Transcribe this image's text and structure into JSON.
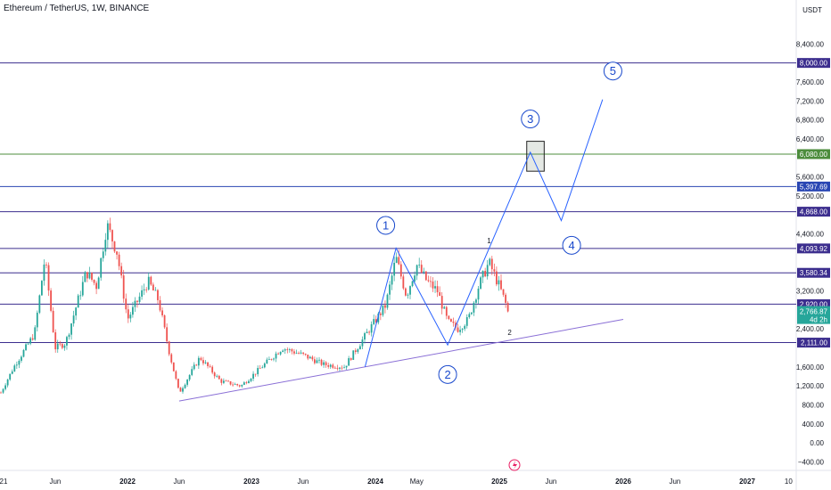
{
  "header": {
    "title": "Ethereum / TetherUS, 1W, BINANCE"
  },
  "chart_data": {
    "type": "candlestick",
    "title": "Ethereum / TetherUS, 1W, BINANCE",
    "y_unit": "USDT",
    "ylim": [
      -580,
      8950
    ],
    "y_ticks": [
      8400,
      7600,
      7200,
      6800,
      6400,
      5600,
      5200,
      4400,
      3200,
      2400,
      1600,
      1200,
      800,
      400,
      0,
      -400
    ],
    "x_ticks": [
      {
        "label": "21",
        "date": "2021-01"
      },
      {
        "label": "Jun",
        "date": "2021-06"
      },
      {
        "label": "2022",
        "date": "2022-01"
      },
      {
        "label": "Jun",
        "date": "2022-06"
      },
      {
        "label": "2023",
        "date": "2023-01"
      },
      {
        "label": "Jun",
        "date": "2023-06"
      },
      {
        "label": "2024",
        "date": "2024-01"
      },
      {
        "label": "May",
        "date": "2024-05"
      },
      {
        "label": "2025",
        "date": "2025-01"
      },
      {
        "label": "Jun",
        "date": "2025-06"
      },
      {
        "label": "2026",
        "date": "2026-01"
      },
      {
        "label": "Jun",
        "date": "2026-06"
      },
      {
        "label": "2027",
        "date": "2027-01"
      },
      {
        "label": "10",
        "date": "2027-05"
      }
    ],
    "price_path": [
      {
        "date": "2020-12",
        "price": 740
      },
      {
        "date": "2021-02",
        "price": 1600
      },
      {
        "date": "2021-04",
        "price": 2300
      },
      {
        "date": "2021-05",
        "price": 3900
      },
      {
        "date": "2021-06",
        "price": 2000
      },
      {
        "date": "2021-07",
        "price": 2100
      },
      {
        "date": "2021-09",
        "price": 3600
      },
      {
        "date": "2021-10",
        "price": 3300
      },
      {
        "date": "2021-11",
        "price": 4600
      },
      {
        "date": "2021-12",
        "price": 4000
      },
      {
        "date": "2022-01",
        "price": 2600
      },
      {
        "date": "2022-03",
        "price": 3400
      },
      {
        "date": "2022-04",
        "price": 3000
      },
      {
        "date": "2022-05",
        "price": 1950
      },
      {
        "date": "2022-06",
        "price": 1050
      },
      {
        "date": "2022-08",
        "price": 1800
      },
      {
        "date": "2022-10",
        "price": 1300
      },
      {
        "date": "2022-12",
        "price": 1200
      },
      {
        "date": "2023-02",
        "price": 1600
      },
      {
        "date": "2023-04",
        "price": 2000
      },
      {
        "date": "2023-06",
        "price": 1850
      },
      {
        "date": "2023-08",
        "price": 1650
      },
      {
        "date": "2023-10",
        "price": 1600
      },
      {
        "date": "2023-12",
        "price": 2250
      },
      {
        "date": "2024-02",
        "price": 2900
      },
      {
        "date": "2024-03",
        "price": 3900
      },
      {
        "date": "2024-04",
        "price": 3100
      },
      {
        "date": "2024-05",
        "price": 3750
      },
      {
        "date": "2024-06",
        "price": 3400
      },
      {
        "date": "2024-07",
        "price": 3200
      },
      {
        "date": "2024-08",
        "price": 2550
      },
      {
        "date": "2024-09",
        "price": 2400
      },
      {
        "date": "2024-10",
        "price": 2600
      },
      {
        "date": "2024-11",
        "price": 3300
      },
      {
        "date": "2024-12",
        "price": 3800
      },
      {
        "date": "2025-01",
        "price": 3300
      },
      {
        "date": "2025-02",
        "price": 2700
      },
      {
        "date": "2025-02",
        "price": 2766.87
      }
    ],
    "levels": [
      {
        "price": 8000,
        "label": "8,000.00",
        "color": "#3c2e8e"
      },
      {
        "price": 6080,
        "label": "6,080.00",
        "color": "#4c8c3c"
      },
      {
        "price": 5397.69,
        "label": "5,397.69",
        "color": "#2946b3"
      },
      {
        "price": 4868,
        "label": "4,868.00",
        "color": "#3c2e8e"
      },
      {
        "price": 4093.92,
        "label": "4,093.92",
        "color": "#3c2e8e"
      },
      {
        "price": 3580.34,
        "label": "3,580.34",
        "color": "#3c2e8e"
      },
      {
        "price": 2920,
        "label": "2,920.00",
        "color": "#3c2e8e"
      },
      {
        "price": 2111,
        "label": "2,111.00",
        "color": "#3c2e8e"
      }
    ],
    "current_price": {
      "label": "2,766.87",
      "countdown": "4d 2h",
      "price": 2766.87,
      "color": "#26a69a"
    },
    "trendline": {
      "from": {
        "date": "2022-06",
        "price": 880
      },
      "to": {
        "date": "2026-01",
        "price": 2600
      },
      "color": "#8a6fd6"
    },
    "wave_path": {
      "color": "#2962ff",
      "points": [
        {
          "date": "2023-12",
          "price": 1600
        },
        {
          "date": "2024-03",
          "price": 4100
        },
        {
          "date": "2024-08",
          "price": 2060
        },
        {
          "date": "2025-04",
          "price": 6120
        },
        {
          "date": "2025-07",
          "price": 4680
        },
        {
          "date": "2025-11",
          "price": 7230
        }
      ]
    },
    "wave_labels": [
      {
        "text": "1",
        "date": "2024-02",
        "price": 4580
      },
      {
        "text": "2",
        "date": "2024-08",
        "price": 1440
      },
      {
        "text": "3",
        "date": "2025-04",
        "price": 6820
      },
      {
        "text": "4",
        "date": "2025-08",
        "price": 4160
      },
      {
        "text": "5",
        "date": "2025-12",
        "price": 7830
      }
    ],
    "small_labels": [
      {
        "text": "1",
        "date": "2024-12",
        "price": 4200
      },
      {
        "text": "2",
        "date": "2025-02",
        "price": 2270
      }
    ],
    "target_box": {
      "from_date": "2025-04",
      "to_date": "2025-05",
      "from_price": 5720,
      "to_price": 6350
    }
  }
}
